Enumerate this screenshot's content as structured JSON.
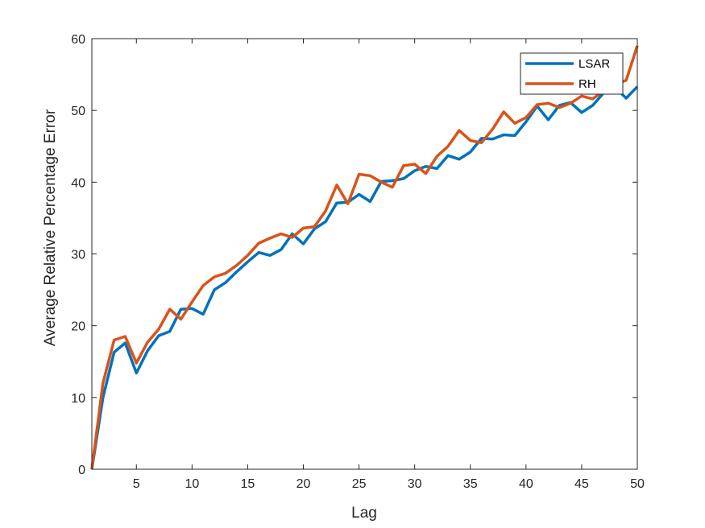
{
  "chart_data": {
    "type": "line",
    "xlabel": "Lag",
    "ylabel": "Average Relative Percentage Error",
    "xlim": [
      1,
      50
    ],
    "ylim": [
      0,
      60
    ],
    "xticks": [
      "5",
      "10",
      "15",
      "20",
      "25",
      "30",
      "35",
      "40",
      "45",
      "50"
    ],
    "yticks": [
      "0",
      "10",
      "20",
      "30",
      "40",
      "50",
      "60"
    ],
    "grid": false,
    "legend_position": "top-right",
    "series": [
      {
        "name": "LSAR",
        "color": "#0072BD",
        "x": [
          1,
          2,
          3,
          4,
          5,
          6,
          7,
          8,
          9,
          10,
          11,
          12,
          13,
          14,
          15,
          16,
          17,
          18,
          19,
          20,
          21,
          22,
          23,
          24,
          25,
          26,
          27,
          28,
          29,
          30,
          31,
          32,
          33,
          34,
          35,
          36,
          37,
          38,
          39,
          40,
          41,
          42,
          43,
          44,
          45,
          46,
          47,
          48,
          49,
          50
        ],
        "values": [
          0,
          10,
          16.3,
          17.6,
          13.4,
          16.5,
          18.6,
          19.2,
          22.3,
          22.4,
          21.6,
          25,
          26,
          27.5,
          28.9,
          30.2,
          29.8,
          30.6,
          32.8,
          31.4,
          33.5,
          34.5,
          37.1,
          37.2,
          38.3,
          37.3,
          40.1,
          40.2,
          40.5,
          41.6,
          42.2,
          41.9,
          43.7,
          43.2,
          44.2,
          46.1,
          46,
          46.6,
          46.5,
          48.4,
          50.6,
          48.7,
          50.7,
          51.1,
          49.7,
          50.7,
          52.5,
          53.2,
          51.7,
          53.3
        ]
      },
      {
        "name": "RH",
        "color": "#D95319",
        "x": [
          1,
          2,
          3,
          4,
          5,
          6,
          7,
          8,
          9,
          10,
          11,
          12,
          13,
          14,
          15,
          16,
          17,
          18,
          19,
          20,
          21,
          22,
          23,
          24,
          25,
          26,
          27,
          28,
          29,
          30,
          31,
          32,
          33,
          34,
          35,
          36,
          37,
          38,
          39,
          40,
          41,
          42,
          43,
          44,
          45,
          46,
          47,
          48,
          49,
          50
        ],
        "values": [
          0,
          12,
          18,
          18.5,
          14.8,
          17.7,
          19.5,
          22.3,
          20.9,
          23.3,
          25.6,
          26.8,
          27.3,
          28.4,
          29.8,
          31.5,
          32.2,
          32.8,
          32.3,
          33.6,
          33.8,
          36,
          39.6,
          37,
          41.1,
          40.9,
          40,
          39.3,
          42.3,
          42.5,
          41.2,
          43.6,
          45,
          47.2,
          45.8,
          45.5,
          47.4,
          49.8,
          48.2,
          49,
          50.8,
          51,
          50.4,
          51,
          52,
          51.6,
          52.8,
          53.6,
          54.2,
          59
        ]
      }
    ]
  }
}
